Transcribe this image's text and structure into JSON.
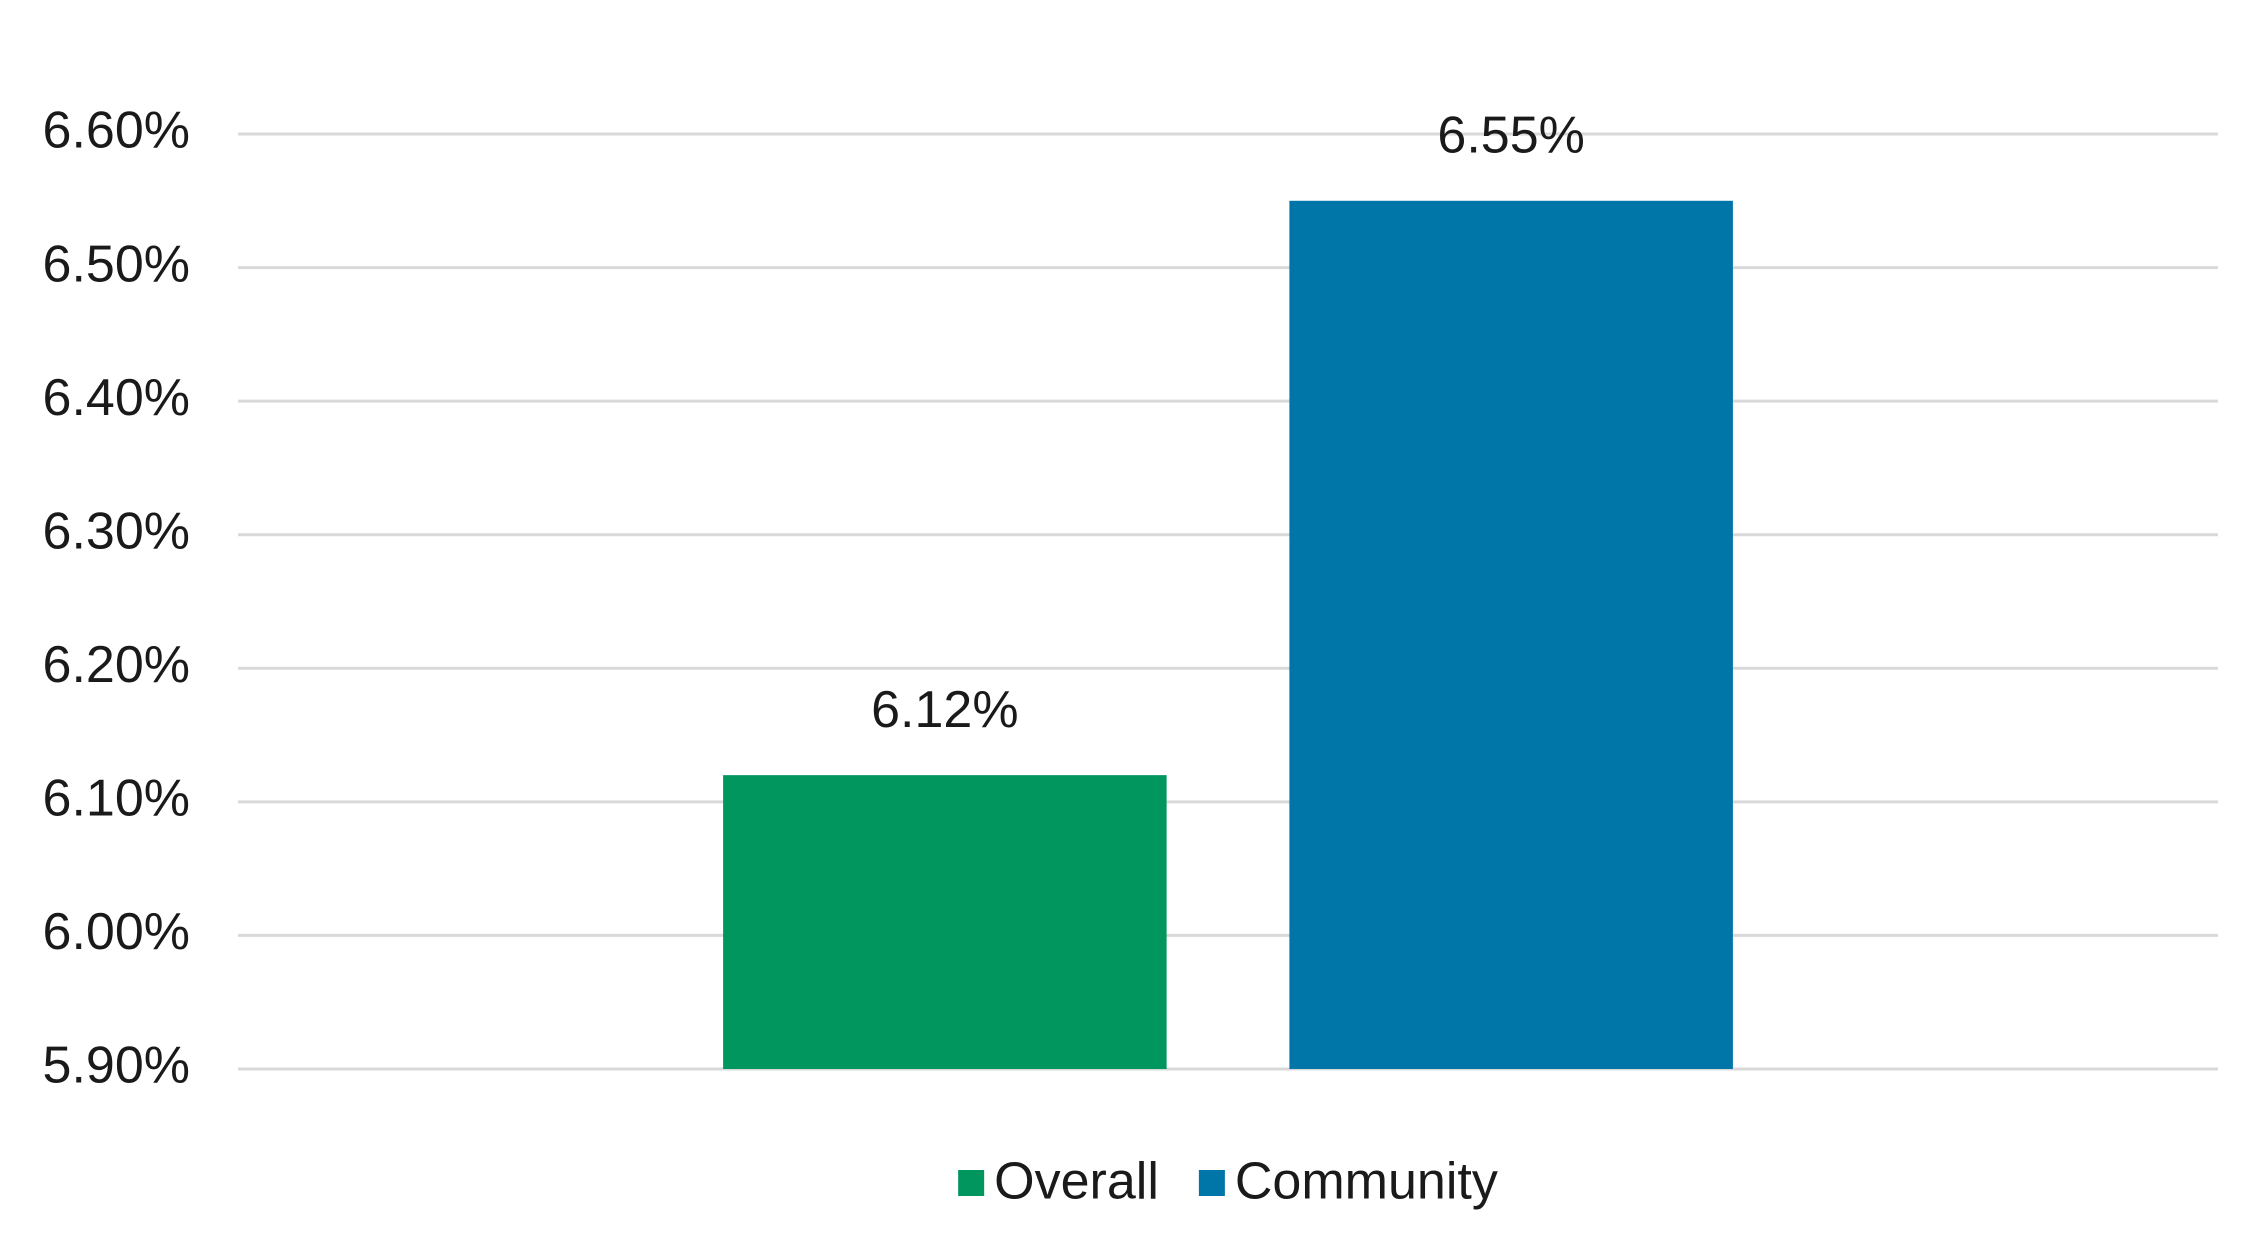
{
  "chart_data": {
    "type": "bar",
    "categories": [
      null
    ],
    "series": [
      {
        "name": "Overall",
        "color": "#00965e",
        "values": [
          6.12
        ],
        "value_labels": [
          "6.12%"
        ]
      },
      {
        "name": "Community",
        "color": "#0075a8",
        "values": [
          6.55
        ],
        "value_labels": [
          "6.55%"
        ]
      }
    ],
    "ylim": [
      5.9,
      6.6
    ],
    "yticks": [
      {
        "value": 5.9,
        "label": "5.90%"
      },
      {
        "value": 6.0,
        "label": "6.00%"
      },
      {
        "value": 6.1,
        "label": "6.10%"
      },
      {
        "value": 6.2,
        "label": "6.20%"
      },
      {
        "value": 6.3,
        "label": "6.30%"
      },
      {
        "value": 6.4,
        "label": "6.40%"
      },
      {
        "value": 6.5,
        "label": "6.50%"
      },
      {
        "value": 6.6,
        "label": "6.60%"
      }
    ],
    "grid": true,
    "legend": "bottom"
  }
}
